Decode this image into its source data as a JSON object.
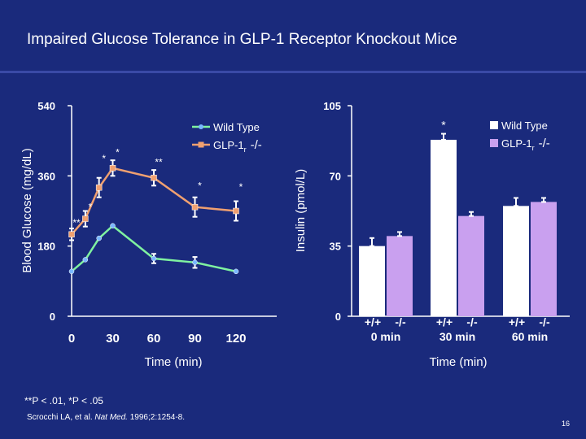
{
  "slide": {
    "title": "Impaired Glucose Tolerance in GLP-1 Receptor Knockout Mice",
    "footnote": "**P < .01, *P < .05",
    "citation_authors": "Scrocchi LA, et al.",
    "citation_journal": "Nat Med.",
    "citation_rest": "1996;2:1254-8.",
    "slide_number": "16"
  },
  "colors": {
    "background": "#1a2a7c",
    "wild_type_line": "#7ff2a0",
    "knockout_line": "#f0a070",
    "knockout_bar": "#c9a0ef",
    "wild_type_bar": "#ffffff",
    "marker": "#7ab8ff"
  },
  "chart_data": [
    {
      "type": "line",
      "title": "",
      "xlabel": "Time (min)",
      "ylabel": "Blood Glucose (mg/dL)",
      "xlim": [
        0,
        120
      ],
      "ylim": [
        0,
        540
      ],
      "xticks": [
        "0",
        "30",
        "60",
        "90",
        "120"
      ],
      "yticks": [
        "0",
        "180",
        "360",
        "540"
      ],
      "legend": [
        {
          "name": "Wild Type"
        },
        {
          "name": "GLP-1r -/-",
          "label_main": "GLP-1",
          "label_sub": "r",
          "label_suffix": "-/-"
        }
      ],
      "series": [
        {
          "name": "Wild Type",
          "x": [
            0,
            10,
            20,
            30,
            60,
            90,
            120
          ],
          "y": [
            115,
            145,
            200,
            232,
            148,
            138,
            115
          ],
          "err": [
            0,
            0,
            0,
            0,
            12,
            14,
            0
          ]
        },
        {
          "name": "GLP-1r -/-",
          "x": [
            0,
            10,
            20,
            30,
            60,
            90,
            120
          ],
          "y": [
            210,
            250,
            330,
            380,
            355,
            280,
            270
          ],
          "err": [
            15,
            20,
            25,
            20,
            20,
            25,
            25
          ]
        }
      ],
      "annotations": [
        {
          "x": 0,
          "y": 240,
          "text": "**"
        },
        {
          "x": 10,
          "y": 280,
          "text": "*"
        },
        {
          "x": 20,
          "y": 405,
          "text": "*"
        },
        {
          "x": 30,
          "y": 420,
          "text": "*"
        },
        {
          "x": 60,
          "y": 395,
          "text": "**"
        },
        {
          "x": 90,
          "y": 335,
          "text": "*"
        },
        {
          "x": 120,
          "y": 332,
          "text": "*"
        }
      ]
    },
    {
      "type": "bar",
      "title": "",
      "xlabel": "Time (min)",
      "ylabel": "Insulin (pmol/L)",
      "ylim": [
        0,
        105
      ],
      "yticks": [
        "0",
        "35",
        "70",
        "105"
      ],
      "groups": [
        {
          "genotypes": [
            "+/+",
            "-/-"
          ],
          "time": "0 min"
        },
        {
          "genotypes": [
            "+/+",
            "-/-"
          ],
          "time": "30 min"
        },
        {
          "genotypes": [
            "+/+",
            "-/-"
          ],
          "time": "60 min"
        }
      ],
      "legend": [
        {
          "name": "Wild Type"
        },
        {
          "name": "GLP-1r -/-",
          "label_main": "GLP-1",
          "label_sub": "r",
          "label_suffix": "-/-"
        }
      ],
      "series": [
        {
          "name": "Wild Type",
          "values": [
            35,
            88,
            55
          ],
          "err": [
            4,
            3,
            4
          ]
        },
        {
          "name": "GLP-1r -/-",
          "values": [
            40,
            50,
            57
          ],
          "err": [
            2,
            2,
            2
          ]
        }
      ],
      "annotations": [
        {
          "group": 1,
          "series": 0,
          "text": "*"
        }
      ]
    }
  ]
}
